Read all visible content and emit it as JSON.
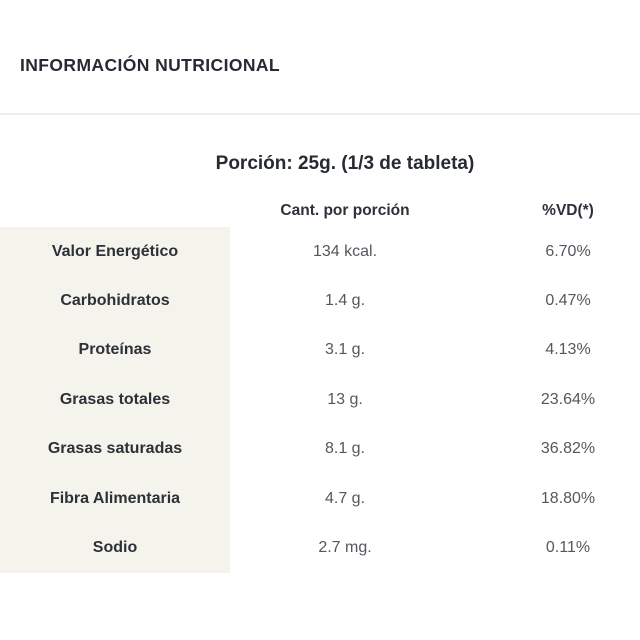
{
  "header": {
    "title": "INFORMACIÓN NUTRICIONAL"
  },
  "table": {
    "portion": "Porción: 25g. (1/3 de tableta)",
    "columns": {
      "amount": "Cant. por porción",
      "vd": "%VD(*)"
    },
    "rows": [
      {
        "label": "Valor Energético",
        "amount": "134 kcal.",
        "vd": "6.70%"
      },
      {
        "label": "Carbohidratos",
        "amount": "1.4 g.",
        "vd": "0.47%"
      },
      {
        "label": "Proteínas",
        "amount": "3.1 g.",
        "vd": "4.13%"
      },
      {
        "label": "Grasas totales",
        "amount": "13 g.",
        "vd": "23.64%"
      },
      {
        "label": "Grasas saturadas",
        "amount": "8.1 g.",
        "vd": "36.82%"
      },
      {
        "label": "Fibra Alimentaria",
        "amount": "4.7 g.",
        "vd": "18.80%"
      },
      {
        "label": "Sodio",
        "amount": "2.7 mg.",
        "vd": "0.11%"
      }
    ]
  },
  "colors": {
    "background": "#ffffff",
    "heading_text": "#262a33",
    "label_text": "#2c3039",
    "value_text": "#54575e",
    "label_column_bg": "#f5f4ec",
    "divider": "#ededf1"
  }
}
